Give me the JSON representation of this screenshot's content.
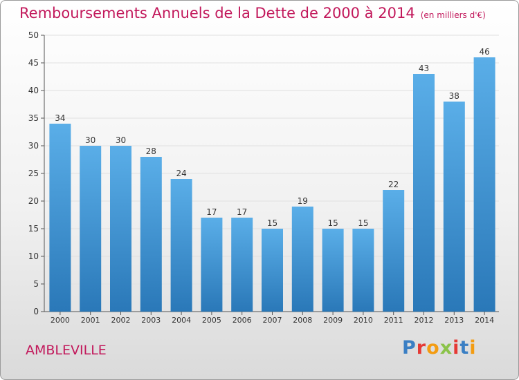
{
  "header": {
    "title": "Remboursements Annuels de la Dette de 2000 à 2014",
    "unit": "(en milliers d'€)"
  },
  "footer": {
    "commune": "AMBLEVILLE",
    "logo_letters": [
      "P",
      "r",
      "o",
      "x",
      "i",
      "t",
      "i"
    ],
    "logo_colors": [
      "#3a7fc4",
      "#e53935",
      "#f39c12",
      "#8bc34a",
      "#e53935",
      "#3a7fc4",
      "#f39c12"
    ]
  },
  "chart_data": {
    "type": "bar",
    "title": "Remboursements Annuels de la Dette de 2000 à 2014",
    "subtitle": "(en milliers d'€)",
    "categories": [
      "2000",
      "2001",
      "2002",
      "2003",
      "2004",
      "2005",
      "2006",
      "2007",
      "2008",
      "2009",
      "2010",
      "2011",
      "2012",
      "2013",
      "2014"
    ],
    "values": [
      34,
      30,
      30,
      28,
      24,
      17,
      17,
      15,
      19,
      15,
      15,
      22,
      43,
      38,
      46
    ],
    "ylim": [
      0,
      50
    ],
    "yticks": [
      0,
      5,
      10,
      15,
      20,
      25,
      30,
      35,
      40,
      45,
      50
    ],
    "grid": true,
    "bar_color_top": "#5aaee8",
    "bar_color_bottom": "#2a78b8"
  }
}
